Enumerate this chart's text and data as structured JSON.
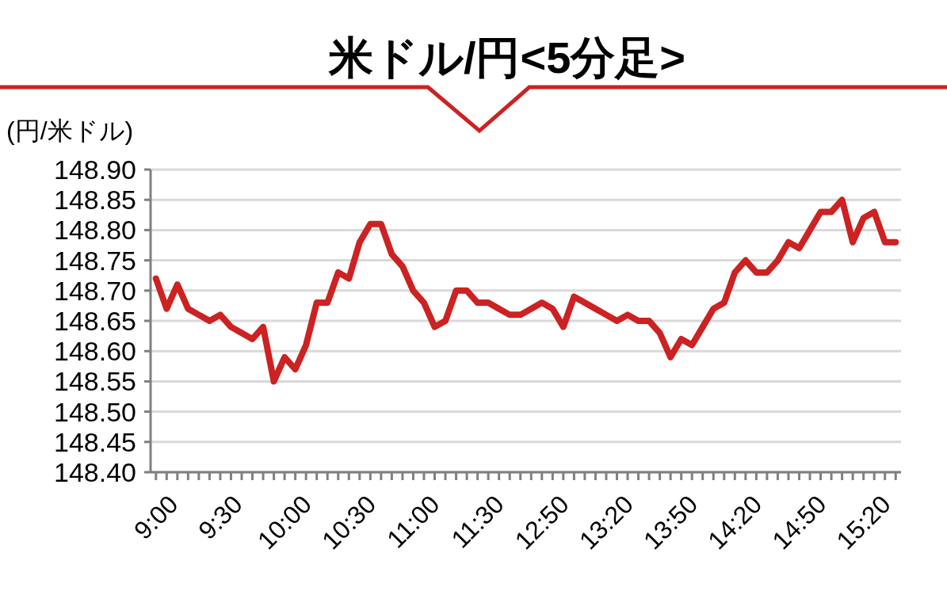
{
  "chart_data": {
    "type": "line",
    "title": "米ドル/円<5分足>",
    "ylabel": "(円/米ドル)",
    "categories": [
      "9:00",
      null,
      null,
      null,
      null,
      null,
      "9:30",
      null,
      null,
      null,
      null,
      null,
      "10:00",
      null,
      null,
      null,
      null,
      null,
      "10:30",
      null,
      null,
      null,
      null,
      null,
      "11:00",
      null,
      null,
      null,
      null,
      null,
      "11:30",
      null,
      null,
      null,
      null,
      null,
      "12:50",
      null,
      null,
      null,
      null,
      null,
      "13:20",
      null,
      null,
      null,
      null,
      null,
      "13:50",
      null,
      null,
      null,
      null,
      null,
      "14:20",
      null,
      null,
      null,
      null,
      null,
      "14:50",
      null,
      null,
      null,
      null,
      null,
      "15:20",
      null,
      null,
      null
    ],
    "series": [
      {
        "color": "#cc2222",
        "values": [
          148.72,
          148.67,
          148.71,
          148.67,
          148.66,
          148.65,
          148.66,
          148.64,
          148.63,
          148.62,
          148.64,
          148.55,
          148.59,
          148.57,
          148.61,
          148.68,
          148.68,
          148.73,
          148.72,
          148.78,
          148.81,
          148.81,
          148.76,
          148.74,
          148.7,
          148.68,
          148.64,
          148.65,
          148.7,
          148.7,
          148.68,
          148.68,
          148.67,
          148.66,
          148.66,
          148.67,
          148.68,
          148.67,
          148.64,
          148.69,
          148.68,
          148.67,
          148.66,
          148.65,
          148.66,
          148.65,
          148.65,
          148.63,
          148.59,
          148.62,
          148.61,
          148.64,
          148.67,
          148.68,
          148.73,
          148.75,
          148.73,
          148.73,
          148.75,
          148.78,
          148.77,
          148.8,
          148.83,
          148.83,
          148.85,
          148.78,
          148.82,
          148.83,
          148.78,
          148.78
        ]
      }
    ],
    "ylim": [
      148.4,
      148.9
    ],
    "yticks": [
      {
        "value": 148.4,
        "label": "148.40"
      },
      {
        "value": 148.45,
        "label": "148.45"
      },
      {
        "value": 148.5,
        "label": "148.50"
      },
      {
        "value": 148.55,
        "label": "148.55"
      },
      {
        "value": 148.6,
        "label": "148.60"
      },
      {
        "value": 148.65,
        "label": "148.65"
      },
      {
        "value": 148.7,
        "label": "148.70"
      },
      {
        "value": 148.75,
        "label": "148.75"
      },
      {
        "value": 148.8,
        "label": "148.80"
      },
      {
        "value": 148.85,
        "label": "148.85"
      },
      {
        "value": 148.9,
        "label": "148.90"
      }
    ],
    "grid": "y",
    "marker": "none",
    "line_style": "solid"
  }
}
